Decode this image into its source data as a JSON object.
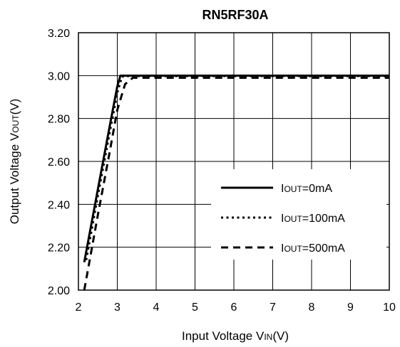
{
  "chart_data": {
    "type": "line",
    "title": "RN5RF30A",
    "xlabel": {
      "main": "Input Voltage V",
      "sub": "IN",
      "tail": "(V)"
    },
    "ylabel": {
      "main": "Output Voltage V",
      "sub": "OUT",
      "tail": "(V)"
    },
    "xlim": [
      2,
      10
    ],
    "ylim": [
      2.0,
      3.2
    ],
    "x_ticks": [
      2,
      3,
      4,
      5,
      6,
      7,
      8,
      9,
      10
    ],
    "x_tick_labels": [
      "2",
      "3",
      "4",
      "5",
      "6",
      "7",
      "8",
      "9",
      "10"
    ],
    "y_ticks": [
      2.0,
      2.2,
      2.4,
      2.6,
      2.8,
      3.0,
      3.2
    ],
    "y_tick_labels": [
      "2.00",
      "2.20",
      "2.40",
      "2.60",
      "2.80",
      "3.00",
      "3.20"
    ],
    "grid": true,
    "legend_position": "bottom-right",
    "series": [
      {
        "name": "IOUT=0mA",
        "name_parts": {
          "main": "I",
          "sub": "OUT",
          "tail": "=0mA"
        },
        "style": "solid",
        "x": [
          2.15,
          2.5,
          2.8,
          3.0,
          3.08,
          3.2,
          4,
          5,
          6,
          7,
          8,
          9,
          10
        ],
        "y": [
          2.13,
          2.47,
          2.76,
          2.95,
          3.0,
          3.0,
          3.0,
          3.0,
          3.0,
          3.0,
          3.0,
          3.0,
          3.0
        ]
      },
      {
        "name": "IOUT=100mA",
        "name_parts": {
          "main": "I",
          "sub": "OUT",
          "tail": "=100mA"
        },
        "style": "dotted",
        "x": [
          2.2,
          2.5,
          2.8,
          3.0,
          3.12,
          3.25,
          4,
          5,
          6,
          7,
          8,
          9,
          10
        ],
        "y": [
          2.14,
          2.44,
          2.73,
          2.92,
          2.995,
          2.998,
          2.998,
          2.998,
          2.998,
          2.998,
          2.998,
          2.998,
          2.998
        ]
      },
      {
        "name": "IOUT=500mA",
        "name_parts": {
          "main": "I",
          "sub": "OUT",
          "tail": "=500mA"
        },
        "style": "dashed",
        "x": [
          2.15,
          2.5,
          2.8,
          3.0,
          3.2,
          3.4,
          4,
          5,
          6,
          7,
          8,
          9,
          10
        ],
        "y": [
          2.0,
          2.35,
          2.64,
          2.84,
          2.96,
          2.99,
          2.99,
          2.99,
          2.99,
          2.99,
          2.99,
          2.99,
          2.99
        ]
      }
    ]
  }
}
